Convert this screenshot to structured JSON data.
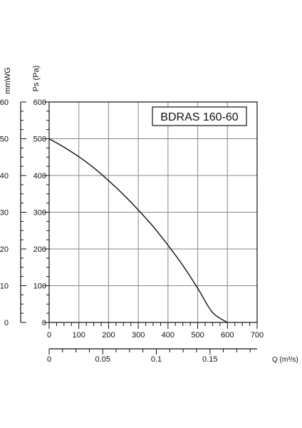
{
  "chart_data": {
    "type": "line",
    "title": "BDRAS 160-60",
    "x": [
      0,
      50,
      100,
      150,
      200,
      250,
      300,
      350,
      400,
      450,
      500,
      550,
      600
    ],
    "series": [
      {
        "values": [
          500,
          477,
          451,
          421,
          386,
          348,
          306,
          261,
          210,
          155,
          93,
          27,
          0
        ]
      }
    ],
    "xlim": [
      0,
      700
    ],
    "ylim": [
      0,
      600
    ],
    "x_ticks": [
      "0",
      "100",
      "200",
      "300",
      "400",
      "500",
      "600",
      "700"
    ],
    "y_ticks": [
      "0",
      "100",
      "200",
      "300",
      "400",
      "500",
      "600"
    ],
    "y2_ticks": [
      "0",
      "10",
      "20",
      "30",
      "40",
      "50",
      "60"
    ],
    "x2_ticks": [
      "0",
      "0.05",
      "0.1",
      "0.15"
    ],
    "ylabel": "Ps (Pa)",
    "y2label": "mmWG",
    "x2label": "Q (m³/s)",
    "x2_max": 0.194,
    "grid": true,
    "colors": {
      "curve": "#111111",
      "grid": "#888888",
      "axis": "#111111"
    }
  }
}
